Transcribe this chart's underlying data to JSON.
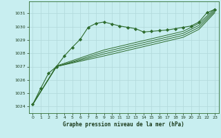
{
  "title": "Graphe pression niveau de la mer (hPa)",
  "background_color": "#c8eef0",
  "plot_bg_color": "#c8eef0",
  "grid_color": "#b0d8da",
  "line_color": "#2d6b2d",
  "spine_color": "#2d6b2d",
  "tick_color": "#1a3a1a",
  "xlim": [
    -0.5,
    23.5
  ],
  "ylim": [
    1023.5,
    1031.9
  ],
  "yticks": [
    1024,
    1025,
    1026,
    1027,
    1028,
    1029,
    1030,
    1031
  ],
  "xticks": [
    0,
    1,
    2,
    3,
    4,
    5,
    6,
    7,
    8,
    9,
    10,
    11,
    12,
    13,
    14,
    15,
    16,
    17,
    18,
    19,
    20,
    21,
    22,
    23
  ],
  "series_main": [
    [
      0,
      1024.15
    ],
    [
      1,
      1025.35
    ],
    [
      2,
      1026.5
    ],
    [
      3,
      1027.0
    ],
    [
      4,
      1027.8
    ],
    [
      5,
      1028.45
    ],
    [
      6,
      1029.05
    ],
    [
      7,
      1029.95
    ],
    [
      8,
      1030.25
    ],
    [
      9,
      1030.35
    ],
    [
      10,
      1030.2
    ],
    [
      11,
      1030.05
    ],
    [
      12,
      1029.95
    ],
    [
      13,
      1029.85
    ],
    [
      14,
      1029.6
    ],
    [
      15,
      1029.65
    ],
    [
      16,
      1029.7
    ],
    [
      17,
      1029.75
    ],
    [
      18,
      1029.85
    ],
    [
      19,
      1029.95
    ],
    [
      20,
      1030.05
    ],
    [
      21,
      1030.35
    ],
    [
      22,
      1031.05
    ],
    [
      23,
      1031.3
    ]
  ],
  "series_lines": [
    [
      [
        0,
        1024.15
      ],
      [
        3,
        1027.0
      ],
      [
        9,
        1027.8
      ],
      [
        14,
        1028.5
      ],
      [
        19,
        1029.2
      ],
      [
        21,
        1029.8
      ],
      [
        23,
        1031.05
      ]
    ],
    [
      [
        0,
        1024.15
      ],
      [
        3,
        1027.0
      ],
      [
        9,
        1027.95
      ],
      [
        14,
        1028.65
      ],
      [
        19,
        1029.35
      ],
      [
        21,
        1029.95
      ],
      [
        23,
        1031.15
      ]
    ],
    [
      [
        0,
        1024.15
      ],
      [
        3,
        1027.0
      ],
      [
        9,
        1028.1
      ],
      [
        14,
        1028.8
      ],
      [
        19,
        1029.5
      ],
      [
        21,
        1030.1
      ],
      [
        23,
        1031.25
      ]
    ],
    [
      [
        0,
        1024.15
      ],
      [
        3,
        1027.05
      ],
      [
        9,
        1028.25
      ],
      [
        14,
        1028.95
      ],
      [
        19,
        1029.65
      ],
      [
        21,
        1030.25
      ],
      [
        23,
        1031.35
      ]
    ]
  ]
}
